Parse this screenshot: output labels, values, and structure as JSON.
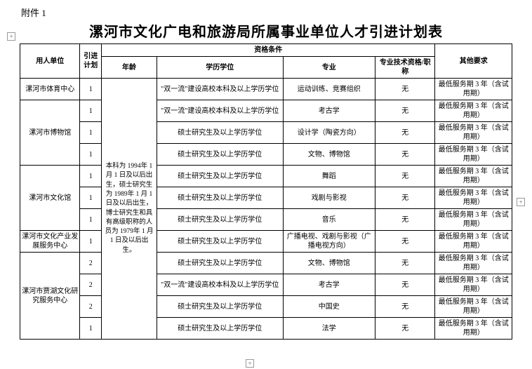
{
  "attachment_label": "附件 1",
  "title": "漯河市文化广电和旅游局所属事业单位人才引进计划表",
  "headers": {
    "employer": "用人单位",
    "plan": "引进计划",
    "qual_group": "资格条件",
    "age": "年龄",
    "edu": "学历学位",
    "major": "专业",
    "tech_qual": "专业技术资格/职称",
    "other": "其他要求"
  },
  "age_text": "本科为 1994年 1 月 1 日及以后出生，硕士研究生为 1989年 1 月 1 日及以后出生，博士研究生和具有高级职称的人员为 1979年 1 月 1 日及以后出生。",
  "edu_type_a": "\"双一流\"建设高校本科及以上学历学位",
  "edu_type_b": "硕士研究生及以上学历学位",
  "none": "无",
  "other_req": "最低服务期 3 年（含试用期）",
  "rows": [
    {
      "employer": "漯河市体育中心",
      "plan": "1",
      "edu": "a",
      "major": "运动训练、竞赛组织"
    },
    {
      "employer": "漯河市博物馆",
      "employer_rowspan": 3,
      "plan": "1",
      "edu": "a",
      "major": "考古学"
    },
    {
      "plan": "1",
      "edu": "b",
      "major": "设计学（陶瓷方向）"
    },
    {
      "plan": "1",
      "edu": "b",
      "major": "文物、博物馆"
    },
    {
      "employer": "漯河市文化馆",
      "employer_rowspan": 3,
      "plan": "1",
      "edu": "b",
      "major": "舞蹈"
    },
    {
      "plan": "1",
      "edu": "b",
      "major": "戏剧与影视"
    },
    {
      "plan": "1",
      "edu": "b",
      "major": "音乐"
    },
    {
      "employer": "漯河市文化产业发展服务中心",
      "plan": "1",
      "edu": "b",
      "major": "广播电视、戏剧与影视（广播电视方向）"
    },
    {
      "employer": "漯河市贾湖文化研究服务中心",
      "employer_rowspan": 4,
      "plan": "2",
      "edu": "b",
      "major": "文物、博物馆"
    },
    {
      "plan": "2",
      "edu": "a",
      "major": "考古学"
    },
    {
      "plan": "2",
      "edu": "b",
      "major": "中国史"
    },
    {
      "plan": "1",
      "edu": "b",
      "major": "法学"
    }
  ],
  "handles": {
    "plus": "+"
  }
}
